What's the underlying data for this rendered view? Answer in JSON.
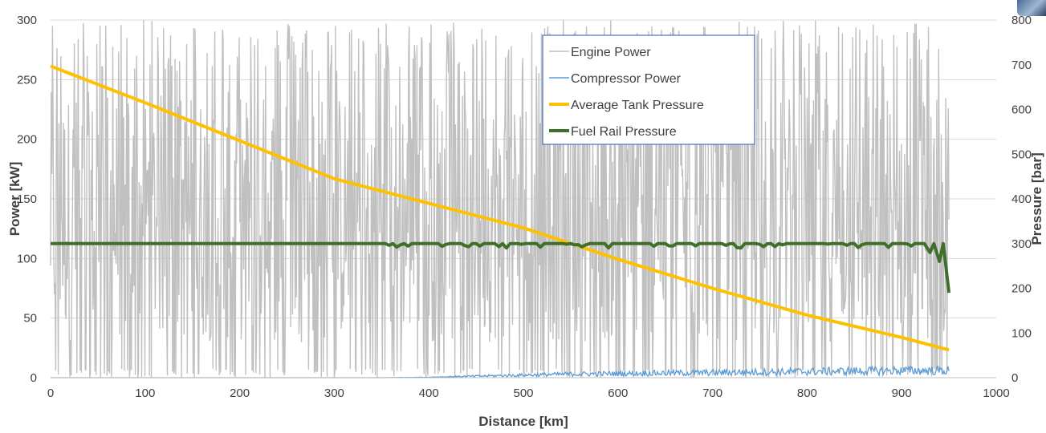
{
  "chart_data": {
    "type": "line",
    "xlabel": "Distance [km]",
    "ylabel_left": "Power [kW]",
    "ylabel_right": "Pressure [bar]",
    "xlim": [
      0,
      1000
    ],
    "ylim_left": [
      0,
      300
    ],
    "ylim_right": [
      0,
      800
    ],
    "x_ticks": [
      0,
      100,
      200,
      300,
      400,
      500,
      600,
      700,
      800,
      900,
      1000
    ],
    "y_ticks_left": [
      0,
      50,
      100,
      150,
      200,
      250,
      300
    ],
    "y_ticks_right": [
      0,
      100,
      200,
      300,
      400,
      500,
      600,
      700,
      800
    ],
    "grid": "horizontal",
    "legend_position": "top-center",
    "colors": {
      "engine": "#c0c0c0",
      "compressor": "#5b9bd5",
      "tank": "#ffc000",
      "rail": "#3f6f2a",
      "grid": "#d9d9d9",
      "legend_border": "#4472c4"
    },
    "series": [
      {
        "name": "Engine Power",
        "axis": "left",
        "color": "#c0c0c0",
        "description_of_data": "highly oscillating signal between 0 and 300 kW from 0 to 950 km",
        "x_range": [
          0,
          950
        ],
        "y_range": [
          0,
          300
        ]
      },
      {
        "name": "Compressor Power",
        "axis": "left",
        "color": "#5b9bd5",
        "x": [
          0,
          350,
          400,
          450,
          500,
          550,
          600,
          700,
          800,
          900,
          950
        ],
        "y": [
          0,
          0,
          0.5,
          1.5,
          2.5,
          3.5,
          4,
          5,
          6,
          7,
          7
        ]
      },
      {
        "name": "Average Tank Pressure",
        "axis": "right",
        "color": "#ffc000",
        "x": [
          0,
          100,
          200,
          300,
          400,
          500,
          600,
          700,
          800,
          900,
          950
        ],
        "y": [
          697,
          615,
          530,
          445,
          390,
          335,
          265,
          200,
          140,
          90,
          62
        ]
      },
      {
        "name": "Fuel Rail Pressure",
        "axis": "right",
        "color": "#3f6f2a",
        "x": [
          0,
          350,
          920,
          930,
          940,
          950
        ],
        "y": [
          300,
          300,
          300,
          280,
          260,
          190
        ]
      }
    ]
  }
}
